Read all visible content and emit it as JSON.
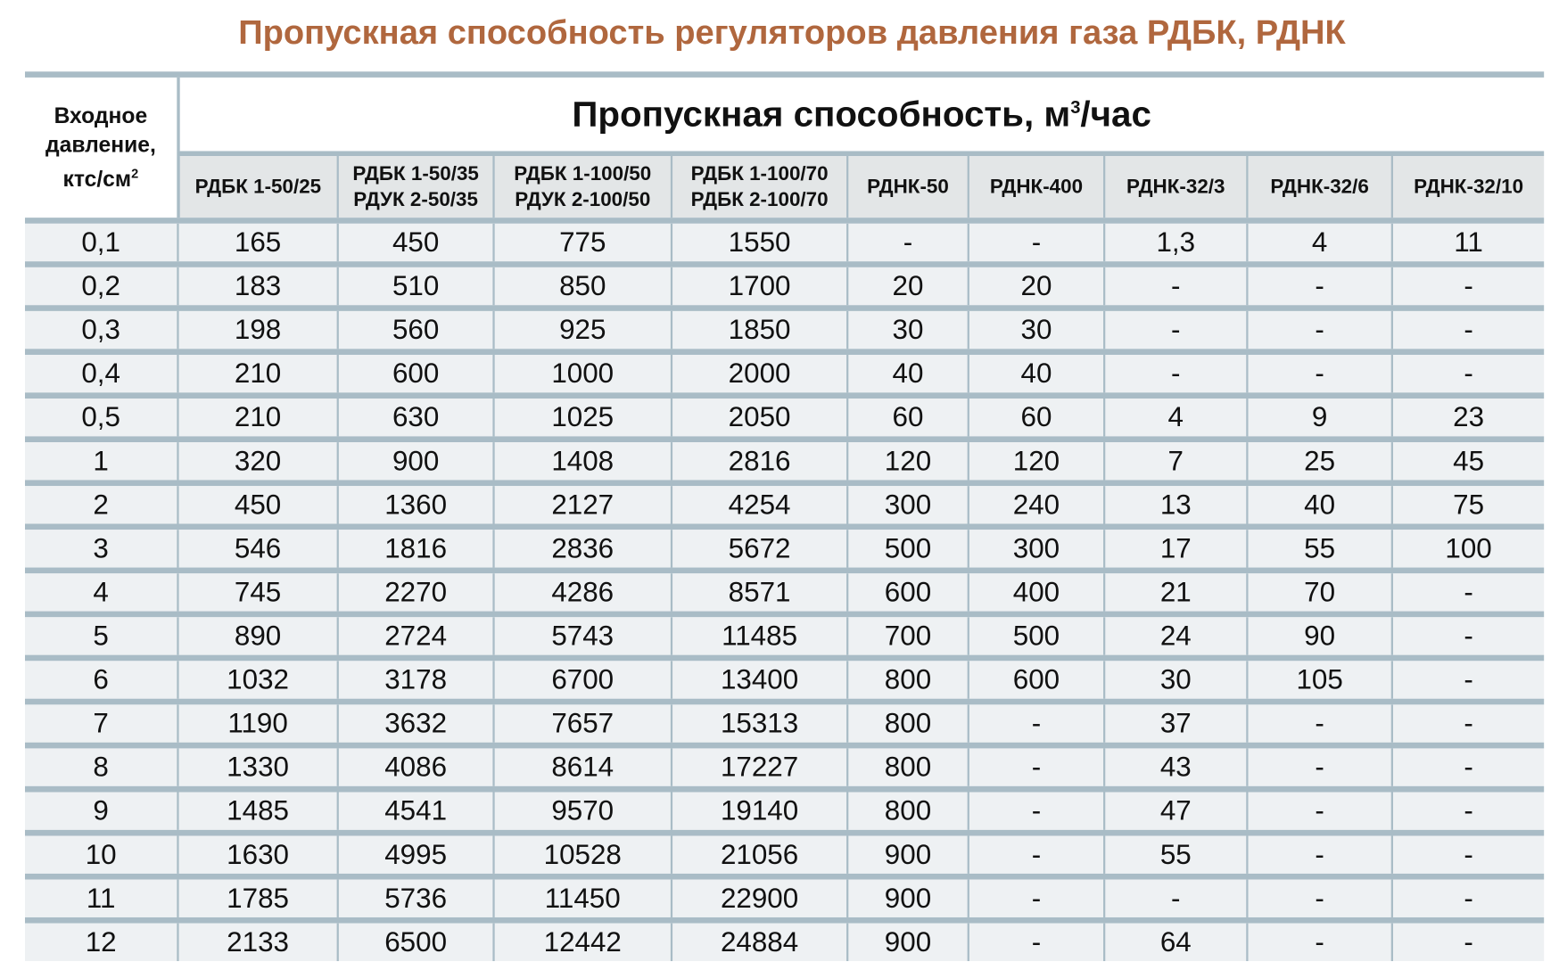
{
  "title": "Пропускная способность регуляторов давления газа РДБК, РДНК",
  "header": {
    "pressure_label_1": "Входное",
    "pressure_label_2": "давление,",
    "pressure_label_3": "ктс/см",
    "pressure_sup": "2",
    "capacity_label": "Пропускная способность, м",
    "capacity_sup": "3",
    "capacity_unit": "/час",
    "columns": [
      [
        "РДБК 1-50/25",
        ""
      ],
      [
        "РДБК 1-50/35",
        "РДУК 2-50/35"
      ],
      [
        "РДБК 1-100/50",
        "РДУК 2-100/50"
      ],
      [
        "РДБК 1-100/70",
        "РДБК 2-100/70"
      ],
      [
        "РДНК-50",
        ""
      ],
      [
        "РДНК-400",
        ""
      ],
      [
        "РДНК-32/3",
        ""
      ],
      [
        "РДНК-32/6",
        ""
      ],
      [
        "РДНК-32/10",
        ""
      ]
    ]
  },
  "rows": [
    [
      "0,1",
      "165",
      "450",
      "775",
      "1550",
      "-",
      "-",
      "1,3",
      "4",
      "11"
    ],
    [
      "0,2",
      "183",
      "510",
      "850",
      "1700",
      "20",
      "20",
      "-",
      "-",
      "-"
    ],
    [
      "0,3",
      "198",
      "560",
      "925",
      "1850",
      "30",
      "30",
      "-",
      "-",
      "-"
    ],
    [
      "0,4",
      "210",
      "600",
      "1000",
      "2000",
      "40",
      "40",
      "-",
      "-",
      "-"
    ],
    [
      "0,5",
      "210",
      "630",
      "1025",
      "2050",
      "60",
      "60",
      "4",
      "9",
      "23"
    ],
    [
      "1",
      "320",
      "900",
      "1408",
      "2816",
      "120",
      "120",
      "7",
      "25",
      "45"
    ],
    [
      "2",
      "450",
      "1360",
      "2127",
      "4254",
      "300",
      "240",
      "13",
      "40",
      "75"
    ],
    [
      "3",
      "546",
      "1816",
      "2836",
      "5672",
      "500",
      "300",
      "17",
      "55",
      "100"
    ],
    [
      "4",
      "745",
      "2270",
      "4286",
      "8571",
      "600",
      "400",
      "21",
      "70",
      "-"
    ],
    [
      "5",
      "890",
      "2724",
      "5743",
      "11485",
      "700",
      "500",
      "24",
      "90",
      "-"
    ],
    [
      "6",
      "1032",
      "3178",
      "6700",
      "13400",
      "800",
      "600",
      "30",
      "105",
      "-"
    ],
    [
      "7",
      "1190",
      "3632",
      "7657",
      "15313",
      "800",
      "-",
      "37",
      "-",
      "-"
    ],
    [
      "8",
      "1330",
      "4086",
      "8614",
      "17227",
      "800",
      "-",
      "43",
      "-",
      "-"
    ],
    [
      "9",
      "1485",
      "4541",
      "9570",
      "19140",
      "800",
      "-",
      "47",
      "-",
      "-"
    ],
    [
      "10",
      "1630",
      "4995",
      "10528",
      "21056",
      "900",
      "-",
      "55",
      "-",
      "-"
    ],
    [
      "11",
      "1785",
      "5736",
      "11450",
      "22900",
      "900",
      "-",
      "-",
      "-",
      "-"
    ],
    [
      "12",
      "2133",
      "6500",
      "12442",
      "24884",
      "900",
      "-",
      "64",
      "-",
      "-"
    ]
  ]
}
